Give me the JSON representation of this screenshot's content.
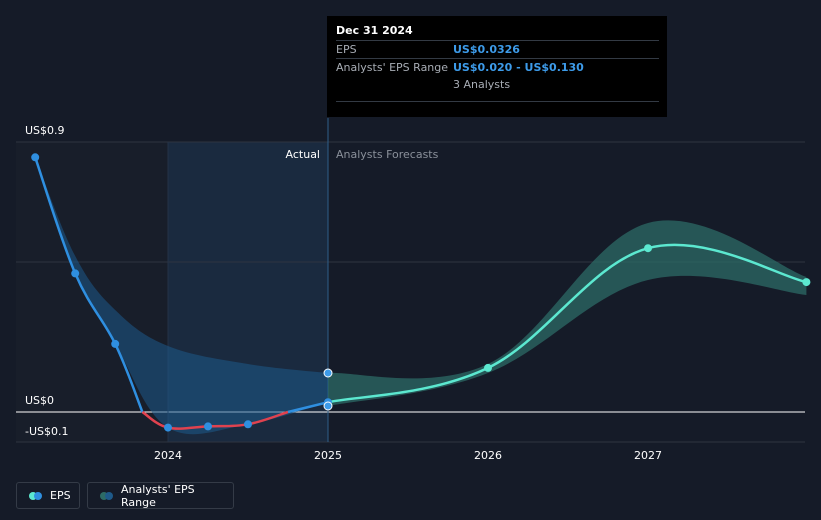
{
  "colors": {
    "background": "#151b28",
    "actual_line": "#2f8fe0",
    "below_zero_line": "#e0424f",
    "forecast_line": "#5ce8d0",
    "forecast_band": "#2c6b66",
    "actual_band": "#1e5a8a",
    "tooltip_value": "#3d9be9"
  },
  "tooltip": {
    "date": "Dec 31 2024",
    "eps_label": "EPS",
    "eps_value": "US$0.0326",
    "range_label": "Analysts' EPS Range",
    "range_value": "US$0.020 - US$0.130",
    "analysts": "3 Analysts"
  },
  "regions": {
    "actual": "Actual",
    "forecast": "Analysts Forecasts"
  },
  "legend": {
    "eps": "EPS",
    "range": "Analysts' EPS Range"
  },
  "chart_data": {
    "type": "line",
    "y_tick_labels": [
      "US$0.9",
      "US$0",
      "-US$0.1"
    ],
    "x_tick_labels": [
      "2024",
      "2025",
      "2026",
      "2027"
    ],
    "ylim": [
      -0.1,
      0.9
    ],
    "xlim": [
      2022.9,
      2027.99
    ],
    "grid": true,
    "series": [
      {
        "name": "EPS",
        "kind": "actual",
        "points": [
          {
            "x": 2023.17,
            "y": 0.849
          },
          {
            "x": 2023.42,
            "y": 0.462
          },
          {
            "x": 2023.67,
            "y": 0.227
          },
          {
            "x": 2023.84,
            "y": 0.0
          },
          {
            "x": 2024.0,
            "y": -0.052
          },
          {
            "x": 2024.25,
            "y": -0.048
          },
          {
            "x": 2024.5,
            "y": -0.041
          },
          {
            "x": 2024.75,
            "y": 0.0
          },
          {
            "x": 2025.0,
            "y": 0.0326
          }
        ]
      },
      {
        "name": "EPS",
        "kind": "forecast",
        "points": [
          {
            "x": 2025.0,
            "y": 0.0326
          },
          {
            "x": 2026.0,
            "y": 0.147
          },
          {
            "x": 2027.0,
            "y": 0.546
          },
          {
            "x": 2027.99,
            "y": 0.433
          }
        ]
      }
    ],
    "ranges": [
      {
        "name": "Analysts' EPS Range",
        "kind": "actual",
        "x": [
          2023.17,
          2023.42,
          2023.67,
          2024.0,
          2024.5,
          2025.0
        ],
        "low": [
          0.849,
          0.462,
          0.227,
          -0.052,
          -0.041,
          0.0326
        ],
        "high": [
          0.849,
          0.52,
          0.34,
          0.22,
          0.16,
          0.13
        ]
      },
      {
        "name": "Analysts' EPS Range",
        "kind": "forecast",
        "x": [
          2025.0,
          2026.0,
          2027.0,
          2027.99
        ],
        "low": [
          0.02,
          0.13,
          0.44,
          0.39
        ],
        "high": [
          0.13,
          0.16,
          0.63,
          0.45
        ]
      }
    ],
    "markers": [
      {
        "x": 2025.0,
        "y": 0.13
      },
      {
        "x": 2025.0,
        "y": 0.02
      }
    ]
  }
}
